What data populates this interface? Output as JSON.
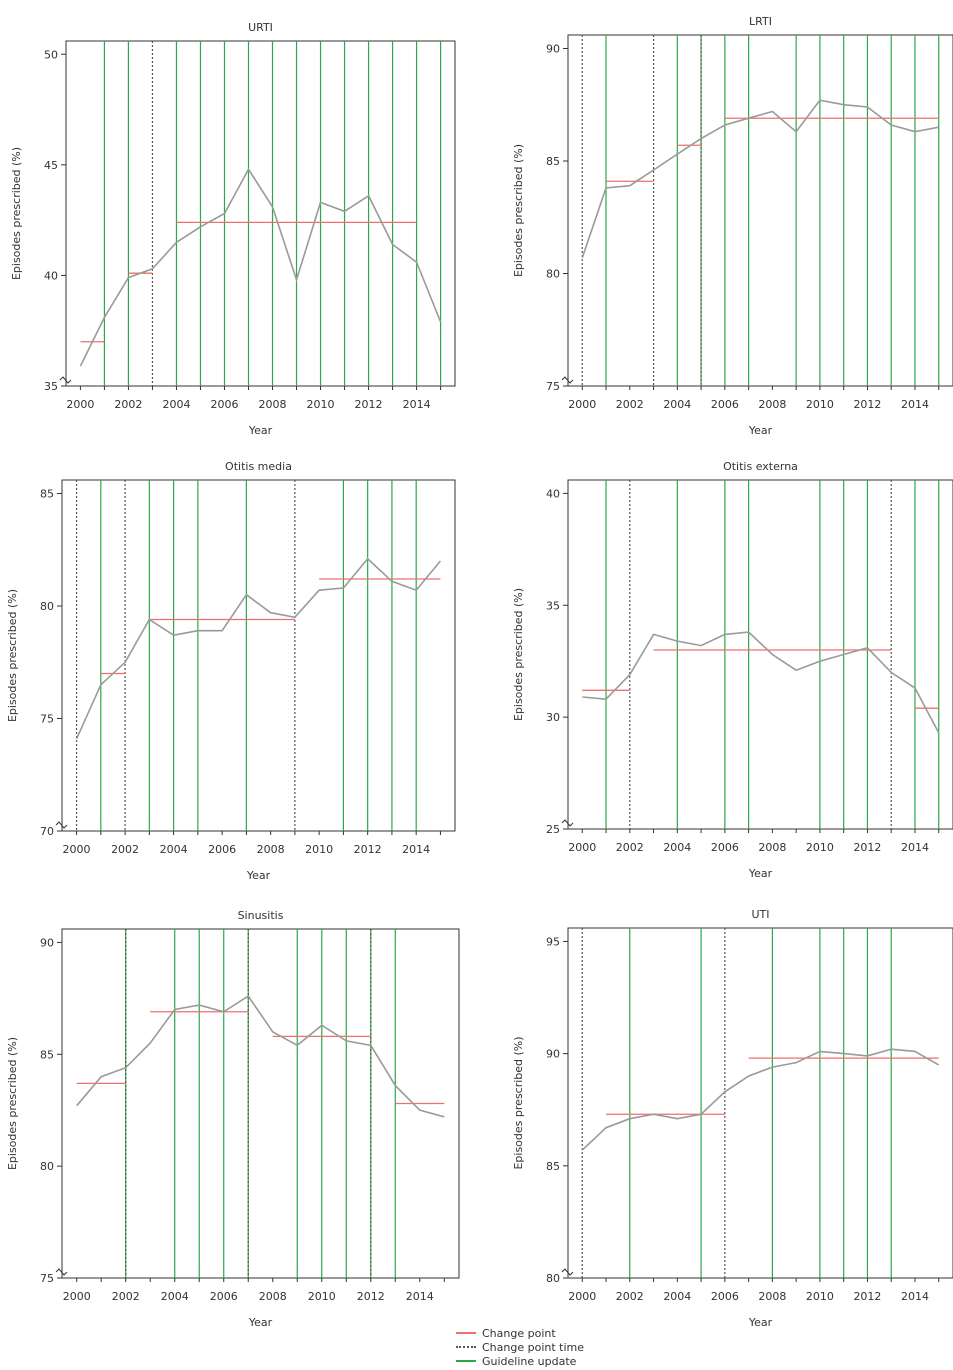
{
  "colors": {
    "series": "#9a9a9a",
    "change_point": "#ef6f6f",
    "change_point_time": "#555555",
    "guideline_update": "#2aa84a",
    "axis": "#333333"
  },
  "legend": {
    "change_point": "Change point",
    "change_point_time": "Change point time",
    "guideline_update": "Guideline update"
  },
  "chart_data": [
    {
      "type": "line",
      "title": "URTI",
      "xlabel": "Year",
      "ylabel": "Episodes prescribed (%)",
      "x": [
        2000,
        2001,
        2002,
        2003,
        2004,
        2005,
        2006,
        2007,
        2008,
        2009,
        2010,
        2011,
        2012,
        2013,
        2014,
        2015
      ],
      "values": [
        35.9,
        38.1,
        39.9,
        40.3,
        41.5,
        42.2,
        42.8,
        44.8,
        43.1,
        39.8,
        43.3,
        42.9,
        43.6,
        41.4,
        40.6,
        37.9
      ],
      "xlim": [
        1999.4,
        2015.6
      ],
      "ylim": [
        35,
        50.6
      ],
      "xticks": [
        2000,
        2002,
        2004,
        2006,
        2008,
        2010,
        2012,
        2014
      ],
      "yticks": [
        35,
        40,
        45,
        50
      ],
      "y_axis_break": true,
      "change_points": [
        {
          "x0": 2000,
          "x1": 2001,
          "y": 37.0
        },
        {
          "x0": 2002,
          "x1": 2003,
          "y": 40.1
        },
        {
          "x0": 2004,
          "x1": 2014,
          "y": 42.4
        }
      ],
      "change_point_times": [
        2003
      ],
      "guideline_updates": [
        2001,
        2002,
        2004,
        2005,
        2006,
        2007,
        2008,
        2009,
        2010,
        2011,
        2012,
        2013,
        2014,
        2015
      ]
    },
    {
      "type": "line",
      "title": "LRTI",
      "xlabel": "Year",
      "ylabel": "Episodes prescribed (%)",
      "x": [
        2000,
        2001,
        2002,
        2003,
        2004,
        2005,
        2006,
        2007,
        2008,
        2009,
        2010,
        2011,
        2012,
        2013,
        2014,
        2015
      ],
      "values": [
        80.7,
        83.8,
        83.9,
        84.6,
        85.3,
        86.0,
        86.6,
        86.9,
        87.2,
        86.3,
        87.7,
        87.5,
        87.4,
        86.6,
        86.3,
        86.5
      ],
      "xlim": [
        1999.4,
        2015.6
      ],
      "ylim": [
        75,
        90.6
      ],
      "xticks": [
        2000,
        2002,
        2004,
        2006,
        2008,
        2010,
        2012,
        2014
      ],
      "yticks": [
        75,
        80,
        85,
        90
      ],
      "y_axis_break": true,
      "change_points": [
        {
          "x0": 2001,
          "x1": 2003,
          "y": 84.1
        },
        {
          "x0": 2004,
          "x1": 2005,
          "y": 85.7
        },
        {
          "x0": 2006,
          "x1": 2015,
          "y": 86.9
        }
      ],
      "change_point_times": [
        2000,
        2003,
        2005
      ],
      "guideline_updates": [
        2001,
        2004,
        2005,
        2006,
        2007,
        2009,
        2010,
        2011,
        2012,
        2013,
        2014,
        2015
      ]
    },
    {
      "type": "line",
      "title": "Otitis media",
      "xlabel": "Year",
      "ylabel": "Episodes prescribed (%)",
      "x": [
        2000,
        2001,
        2002,
        2003,
        2004,
        2005,
        2006,
        2007,
        2008,
        2009,
        2010,
        2011,
        2012,
        2013,
        2014,
        2015
      ],
      "values": [
        74.1,
        76.5,
        77.5,
        79.4,
        78.7,
        78.9,
        78.9,
        80.5,
        79.7,
        79.5,
        80.7,
        80.8,
        82.1,
        81.1,
        80.7,
        82.0
      ],
      "xlim": [
        1999.4,
        2015.6
      ],
      "ylim": [
        70,
        85.6
      ],
      "xticks": [
        2000,
        2002,
        2004,
        2006,
        2008,
        2010,
        2012,
        2014
      ],
      "yticks": [
        70,
        75,
        80,
        85
      ],
      "y_axis_break": true,
      "change_points": [
        {
          "x0": 2001,
          "x1": 2002,
          "y": 77.0
        },
        {
          "x0": 2003,
          "x1": 2009,
          "y": 79.4
        },
        {
          "x0": 2010,
          "x1": 2015,
          "y": 81.2
        }
      ],
      "change_point_times": [
        2000,
        2002,
        2009
      ],
      "guideline_updates": [
        2001,
        2003,
        2004,
        2005,
        2007,
        2011,
        2012,
        2013,
        2014
      ]
    },
    {
      "type": "line",
      "title": "Otitis externa",
      "xlabel": "Year",
      "ylabel": "Episodes prescribed (%)",
      "x": [
        2000,
        2001,
        2002,
        2003,
        2004,
        2005,
        2006,
        2007,
        2008,
        2009,
        2010,
        2011,
        2012,
        2013,
        2014,
        2015
      ],
      "values": [
        30.9,
        30.8,
        31.9,
        33.7,
        33.4,
        33.2,
        33.7,
        33.8,
        32.8,
        32.1,
        32.5,
        32.8,
        33.1,
        32.0,
        31.3,
        29.3
      ],
      "xlim": [
        1999.4,
        2015.6
      ],
      "ylim": [
        25,
        40.6
      ],
      "xticks": [
        2000,
        2002,
        2004,
        2006,
        2008,
        2010,
        2012,
        2014
      ],
      "yticks": [
        25,
        30,
        35,
        40
      ],
      "y_axis_break": true,
      "change_points": [
        {
          "x0": 2000,
          "x1": 2002,
          "y": 31.2
        },
        {
          "x0": 2003,
          "x1": 2013,
          "y": 33.0
        },
        {
          "x0": 2014,
          "x1": 2015,
          "y": 30.4
        }
      ],
      "change_point_times": [
        2002,
        2013
      ],
      "guideline_updates": [
        2001,
        2004,
        2006,
        2007,
        2010,
        2011,
        2012,
        2014,
        2015
      ]
    },
    {
      "type": "line",
      "title": "Sinusitis",
      "xlabel": "Year",
      "ylabel": "Episodes prescribed (%)",
      "x": [
        2000,
        2001,
        2002,
        2003,
        2004,
        2005,
        2006,
        2007,
        2008,
        2009,
        2010,
        2011,
        2012,
        2013,
        2014,
        2015
      ],
      "values": [
        82.7,
        84.0,
        84.4,
        85.5,
        87.0,
        87.2,
        86.9,
        87.6,
        86.0,
        85.4,
        86.3,
        85.6,
        85.4,
        83.6,
        82.5,
        82.2
      ],
      "xlim": [
        1999.4,
        2015.6
      ],
      "ylim": [
        75,
        90.6
      ],
      "xticks": [
        2000,
        2002,
        2004,
        2006,
        2008,
        2010,
        2012,
        2014
      ],
      "yticks": [
        75,
        80,
        85,
        90
      ],
      "y_axis_break": true,
      "change_points": [
        {
          "x0": 2000,
          "x1": 2002,
          "y": 83.7
        },
        {
          "x0": 2003,
          "x1": 2007,
          "y": 86.9
        },
        {
          "x0": 2008,
          "x1": 2012,
          "y": 85.8
        },
        {
          "x0": 2013,
          "x1": 2015,
          "y": 82.8
        }
      ],
      "change_point_times": [
        2002,
        2007,
        2012
      ],
      "guideline_updates": [
        2002,
        2004,
        2005,
        2006,
        2007,
        2009,
        2010,
        2011,
        2012,
        2013
      ]
    },
    {
      "type": "line",
      "title": "UTI",
      "xlabel": "Year",
      "ylabel": "Episodes prescribed (%)",
      "x": [
        2000,
        2001,
        2002,
        2003,
        2004,
        2005,
        2006,
        2007,
        2008,
        2009,
        2010,
        2011,
        2012,
        2013,
        2014,
        2015
      ],
      "values": [
        85.7,
        86.7,
        87.1,
        87.3,
        87.1,
        87.3,
        88.3,
        89.0,
        89.4,
        89.6,
        90.1,
        90.0,
        89.9,
        90.2,
        90.1,
        89.5
      ],
      "xlim": [
        1999.4,
        2015.6
      ],
      "ylim": [
        80,
        95.6
      ],
      "xticks": [
        2000,
        2002,
        2004,
        2006,
        2008,
        2010,
        2012,
        2014
      ],
      "yticks": [
        80,
        85,
        90,
        95
      ],
      "y_axis_break": true,
      "change_points": [
        {
          "x0": 2001,
          "x1": 2006,
          "y": 87.3
        },
        {
          "x0": 2007,
          "x1": 2015,
          "y": 89.8
        }
      ],
      "change_point_times": [
        2000,
        2006
      ],
      "guideline_updates": [
        2002,
        2005,
        2008,
        2010,
        2011,
        2012,
        2013
      ]
    }
  ]
}
